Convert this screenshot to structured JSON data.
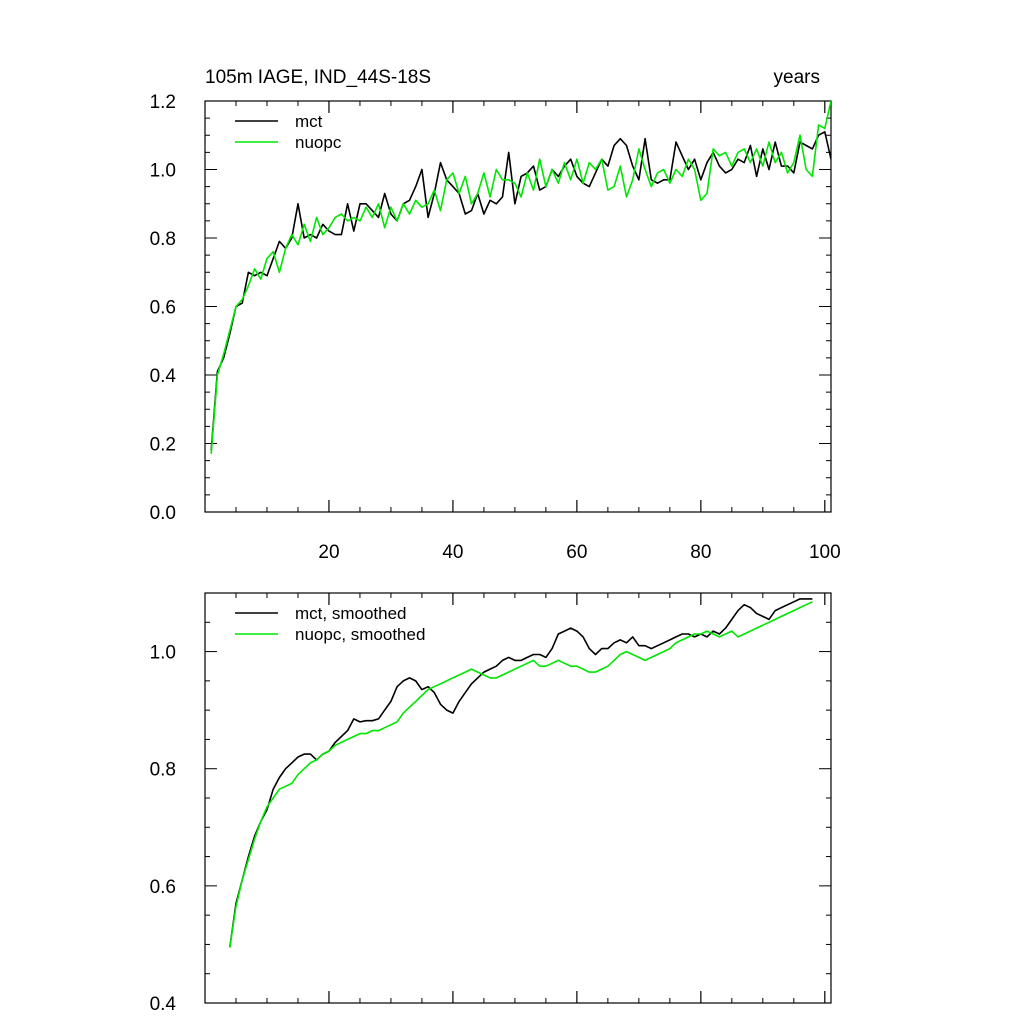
{
  "chart_data": [
    {
      "type": "line",
      "title": "105m IAGE, IND_44S-18S",
      "right_title": "years",
      "xlabel": "",
      "ylabel": "",
      "xlim": [
        0,
        101
      ],
      "ylim": [
        0.0,
        1.2
      ],
      "xticks": [
        20,
        40,
        60,
        80,
        100
      ],
      "xtick_labels": [
        "20",
        "40",
        "60",
        "80",
        "100"
      ],
      "yticks": [
        0.0,
        0.2,
        0.4,
        0.6,
        0.8,
        1.0,
        1.2
      ],
      "ytick_labels": [
        "0.0",
        "0.2",
        "0.4",
        "0.6",
        "0.8",
        "1.0",
        "1.2"
      ],
      "grid": false,
      "legend_position": "top-left",
      "series": [
        {
          "name": "mct",
          "color": "#000000",
          "x": [
            1,
            2,
            3,
            4,
            5,
            6,
            7,
            8,
            9,
            10,
            11,
            12,
            13,
            14,
            15,
            16,
            17,
            18,
            19,
            20,
            21,
            22,
            23,
            24,
            25,
            26,
            27,
            28,
            29,
            30,
            31,
            32,
            33,
            34,
            35,
            36,
            37,
            38,
            39,
            40,
            41,
            42,
            43,
            44,
            45,
            46,
            47,
            48,
            49,
            50,
            51,
            52,
            53,
            54,
            55,
            56,
            57,
            58,
            59,
            60,
            61,
            62,
            63,
            64,
            65,
            66,
            67,
            68,
            69,
            70,
            71,
            72,
            73,
            74,
            75,
            76,
            77,
            78,
            79,
            80,
            81,
            82,
            83,
            84,
            85,
            86,
            87,
            88,
            89,
            90,
            91,
            92,
            93,
            94,
            95,
            96,
            97,
            98,
            99,
            100,
            101
          ],
          "values": [
            0.18,
            0.41,
            0.45,
            0.52,
            0.6,
            0.61,
            0.7,
            0.69,
            0.7,
            0.69,
            0.74,
            0.79,
            0.77,
            0.8,
            0.9,
            0.8,
            0.81,
            0.8,
            0.84,
            0.82,
            0.81,
            0.81,
            0.9,
            0.82,
            0.9,
            0.9,
            0.88,
            0.86,
            0.93,
            0.87,
            0.85,
            0.9,
            0.91,
            0.95,
            1.0,
            0.86,
            0.93,
            1.02,
            0.97,
            0.95,
            0.93,
            0.87,
            0.88,
            0.93,
            0.87,
            0.91,
            0.9,
            0.92,
            1.05,
            0.9,
            0.98,
            0.99,
            1.01,
            0.94,
            0.95,
            1.0,
            0.98,
            1.01,
            1.03,
            0.98,
            0.96,
            0.95,
            0.99,
            1.03,
            1.01,
            1.07,
            1.09,
            1.07,
            1.01,
            0.97,
            1.09,
            0.97,
            0.96,
            0.97,
            0.97,
            1.08,
            1.04,
            1.0,
            1.03,
            0.97,
            1.02,
            1.05,
            1.01,
            0.99,
            1.0,
            1.03,
            1.02,
            1.07,
            0.98,
            1.06,
            1.0,
            1.08,
            1.01,
            1.01,
            0.99,
            1.08,
            1.07,
            1.06,
            1.1,
            1.11,
            1.03
          ]
        },
        {
          "name": "nuopc",
          "color": "#00e600",
          "x": [
            1,
            2,
            3,
            4,
            5,
            6,
            7,
            8,
            9,
            10,
            11,
            12,
            13,
            14,
            15,
            16,
            17,
            18,
            19,
            20,
            21,
            22,
            23,
            24,
            25,
            26,
            27,
            28,
            29,
            30,
            31,
            32,
            33,
            34,
            35,
            36,
            37,
            38,
            39,
            40,
            41,
            42,
            43,
            44,
            45,
            46,
            47,
            48,
            49,
            50,
            51,
            52,
            53,
            54,
            55,
            56,
            57,
            58,
            59,
            60,
            61,
            62,
            63,
            64,
            65,
            66,
            67,
            68,
            69,
            70,
            71,
            72,
            73,
            74,
            75,
            76,
            77,
            78,
            79,
            80,
            81,
            82,
            83,
            84,
            85,
            86,
            87,
            88,
            89,
            90,
            91,
            92,
            93,
            94,
            95,
            96,
            97,
            98,
            99,
            100,
            101
          ],
          "values": [
            0.17,
            0.4,
            0.46,
            0.53,
            0.6,
            0.62,
            0.66,
            0.71,
            0.68,
            0.74,
            0.76,
            0.7,
            0.77,
            0.81,
            0.78,
            0.84,
            0.79,
            0.86,
            0.81,
            0.83,
            0.86,
            0.87,
            0.85,
            0.86,
            0.85,
            0.89,
            0.86,
            0.9,
            0.83,
            0.89,
            0.85,
            0.9,
            0.87,
            0.91,
            0.89,
            0.9,
            0.94,
            0.88,
            0.97,
            0.99,
            0.93,
            0.98,
            0.9,
            0.93,
            0.99,
            0.92,
            1.0,
            0.97,
            0.97,
            0.96,
            0.92,
            0.99,
            0.94,
            1.03,
            0.95,
            1.0,
            0.96,
            1.02,
            0.97,
            1.03,
            0.96,
            1.02,
            1.0,
            1.03,
            0.94,
            0.95,
            1.01,
            0.92,
            0.97,
            1.06,
            1.0,
            0.95,
            0.99,
            1.0,
            0.96,
            1.0,
            0.98,
            1.03,
            1.0,
            0.91,
            0.93,
            1.06,
            1.04,
            1.05,
            1.01,
            1.05,
            1.06,
            1.02,
            1.06,
            1.01,
            1.08,
            1.02,
            1.05,
            0.99,
            1.02,
            1.1,
            1.0,
            0.98,
            1.13,
            1.12,
            1.2
          ]
        }
      ]
    },
    {
      "type": "line",
      "title": "",
      "xlabel": "",
      "ylabel": "",
      "xlim": [
        0,
        101
      ],
      "ylim": [
        0.4,
        1.1
      ],
      "xticks": [
        20,
        40,
        60,
        80,
        100
      ],
      "xtick_labels": [],
      "yticks": [
        0.4,
        0.6,
        0.8,
        1.0
      ],
      "ytick_labels": [
        "0.4",
        "0.6",
        "0.8",
        "1.0"
      ],
      "grid": false,
      "legend_position": "top-left",
      "series": [
        {
          "name": "mct, smoothed",
          "color": "#000000",
          "x": [
            4,
            5,
            6,
            7,
            8,
            9,
            10,
            11,
            12,
            13,
            14,
            15,
            16,
            17,
            18,
            19,
            20,
            21,
            22,
            23,
            24,
            25,
            26,
            27,
            28,
            29,
            30,
            31,
            32,
            33,
            34,
            35,
            36,
            37,
            38,
            39,
            40,
            41,
            42,
            43,
            44,
            45,
            46,
            47,
            48,
            49,
            50,
            51,
            52,
            53,
            54,
            55,
            56,
            57,
            58,
            59,
            60,
            61,
            62,
            63,
            64,
            65,
            66,
            67,
            68,
            69,
            70,
            71,
            72,
            73,
            74,
            75,
            76,
            77,
            78,
            79,
            80,
            81,
            82,
            83,
            84,
            85,
            86,
            87,
            88,
            89,
            90,
            91,
            92,
            93,
            94,
            95,
            96,
            97,
            98
          ],
          "values": [
            0.495,
            0.57,
            0.61,
            0.65,
            0.685,
            0.71,
            0.73,
            0.765,
            0.785,
            0.8,
            0.81,
            0.82,
            0.825,
            0.825,
            0.815,
            0.825,
            0.83,
            0.845,
            0.855,
            0.865,
            0.885,
            0.88,
            0.882,
            0.882,
            0.885,
            0.9,
            0.915,
            0.94,
            0.95,
            0.955,
            0.95,
            0.935,
            0.94,
            0.93,
            0.91,
            0.9,
            0.895,
            0.915,
            0.93,
            0.945,
            0.955,
            0.965,
            0.97,
            0.975,
            0.985,
            0.99,
            0.985,
            0.985,
            0.99,
            0.995,
            0.995,
            0.99,
            1.005,
            1.03,
            1.035,
            1.04,
            1.035,
            1.025,
            1.005,
            0.995,
            1.005,
            1.005,
            1.015,
            1.02,
            1.015,
            1.025,
            1.01,
            1.01,
            1.005,
            1.01,
            1.015,
            1.02,
            1.025,
            1.03,
            1.03,
            1.025,
            1.03,
            1.025,
            1.035,
            1.03,
            1.04,
            1.055,
            1.07,
            1.08,
            1.075,
            1.065,
            1.06,
            1.055,
            1.07,
            1.075,
            1.08,
            1.085,
            1.09,
            1.09,
            1.09
          ]
        },
        {
          "name": "nuopc, smoothed",
          "color": "#00e600",
          "x": [
            4,
            5,
            6,
            7,
            8,
            9,
            10,
            11,
            12,
            13,
            14,
            15,
            16,
            17,
            18,
            19,
            20,
            21,
            22,
            23,
            24,
            25,
            26,
            27,
            28,
            29,
            30,
            31,
            32,
            33,
            34,
            35,
            36,
            37,
            38,
            39,
            40,
            41,
            42,
            43,
            44,
            45,
            46,
            47,
            48,
            49,
            50,
            51,
            52,
            53,
            54,
            55,
            56,
            57,
            58,
            59,
            60,
            61,
            62,
            63,
            64,
            65,
            66,
            67,
            68,
            69,
            70,
            71,
            72,
            73,
            74,
            75,
            76,
            77,
            78,
            79,
            80,
            81,
            82,
            83,
            84,
            85,
            86,
            87,
            88,
            89,
            90,
            91,
            92,
            93,
            94,
            95,
            96,
            97,
            98
          ],
          "values": [
            0.495,
            0.565,
            0.61,
            0.645,
            0.68,
            0.71,
            0.735,
            0.75,
            0.765,
            0.77,
            0.775,
            0.79,
            0.8,
            0.81,
            0.815,
            0.825,
            0.83,
            0.84,
            0.845,
            0.85,
            0.855,
            0.86,
            0.86,
            0.865,
            0.865,
            0.87,
            0.875,
            0.88,
            0.895,
            0.905,
            0.915,
            0.925,
            0.935,
            0.94,
            0.945,
            0.95,
            0.955,
            0.96,
            0.965,
            0.97,
            0.965,
            0.96,
            0.955,
            0.955,
            0.96,
            0.965,
            0.97,
            0.975,
            0.98,
            0.985,
            0.975,
            0.975,
            0.98,
            0.985,
            0.98,
            0.975,
            0.975,
            0.97,
            0.965,
            0.965,
            0.97,
            0.975,
            0.985,
            0.995,
            1.0,
            0.995,
            0.99,
            0.985,
            0.99,
            0.995,
            1.0,
            1.005,
            1.015,
            1.02,
            1.025,
            1.03,
            1.03,
            1.035,
            1.03,
            1.025,
            1.03,
            1.035,
            1.025,
            1.03,
            1.035,
            1.04,
            1.045,
            1.05,
            1.055,
            1.06,
            1.065,
            1.07,
            1.075,
            1.08,
            1.085
          ]
        }
      ]
    }
  ]
}
